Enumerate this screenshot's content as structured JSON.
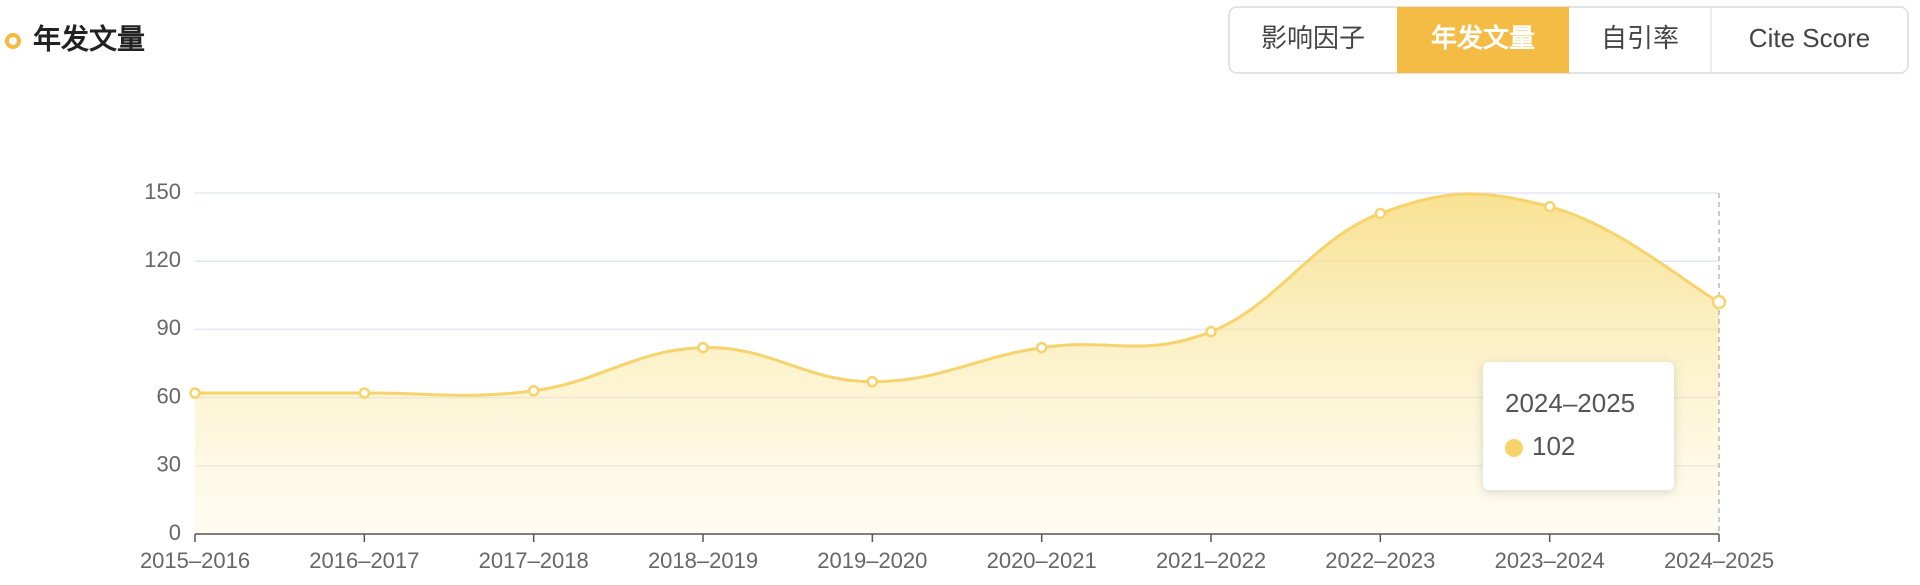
{
  "header": {
    "title": "年发文量"
  },
  "tabs": [
    {
      "label": "影响因子",
      "active": false
    },
    {
      "label": "年发文量",
      "active": true
    },
    {
      "label": "自引率",
      "active": false
    },
    {
      "label": "Cite Score",
      "active": false
    }
  ],
  "chart_data": {
    "type": "area",
    "color": "#f6d36b",
    "categories": [
      "2015–2016",
      "2016–2017",
      "2017–2018",
      "2018–2019",
      "2019–2020",
      "2020–2021",
      "2021–2022",
      "2022–2023",
      "2023–2024",
      "2024–2025"
    ],
    "values": [
      62,
      62,
      63,
      82,
      67,
      82,
      89,
      141,
      144,
      102
    ],
    "ylim": [
      0,
      150
    ],
    "yticks": [
      0,
      30,
      60,
      90,
      120,
      150
    ],
    "grid": true,
    "tooltip_index": 9
  }
}
